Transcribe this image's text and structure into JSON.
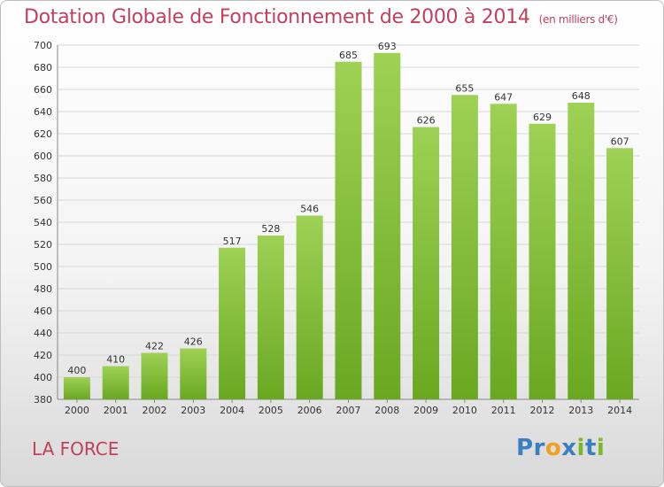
{
  "title": "Dotation Globale de Fonctionnement de 2000 à 2014",
  "subtitle": "(en milliers d'€)",
  "commune": "LA FORCE",
  "logo": {
    "text": "Proxiti",
    "letters": [
      "P",
      "r",
      "o",
      "x",
      "i",
      "t",
      "i"
    ],
    "colors": [
      "#3a7fc1",
      "#3a7fc1",
      "#f0a020",
      "#3a7fc1",
      "#7ab828",
      "#3a7fc1",
      "#7ab828"
    ]
  },
  "colors": {
    "title": "#c0405e",
    "bar_light": "#9ed155",
    "bar_dark": "#6aa821"
  },
  "chart_data": {
    "type": "bar",
    "title": "Dotation Globale de Fonctionnement de 2000 à 2014",
    "categories": [
      "2000",
      "2001",
      "2002",
      "2003",
      "2004",
      "2005",
      "2006",
      "2007",
      "2008",
      "2009",
      "2010",
      "2011",
      "2012",
      "2013",
      "2014"
    ],
    "values": [
      400,
      410,
      422,
      426,
      517,
      528,
      546,
      685,
      693,
      626,
      655,
      647,
      629,
      648,
      607
    ],
    "ylim": [
      380,
      700
    ],
    "yticks": [
      380,
      400,
      420,
      440,
      460,
      480,
      500,
      520,
      540,
      560,
      580,
      600,
      620,
      640,
      660,
      680,
      700
    ],
    "grid": true,
    "xlabel": "",
    "ylabel": ""
  }
}
